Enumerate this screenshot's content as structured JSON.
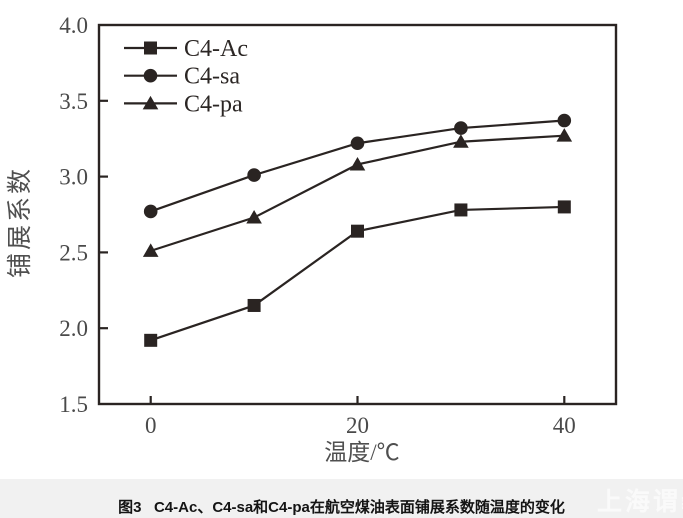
{
  "chart_data": {
    "type": "line",
    "x": [
      0,
      10,
      20,
      30,
      40
    ],
    "series": [
      {
        "name": "C4-Ac",
        "marker": "square",
        "values": [
          1.92,
          2.15,
          2.64,
          2.78,
          2.8
        ]
      },
      {
        "name": "C4-sa",
        "marker": "circle",
        "values": [
          2.77,
          3.01,
          3.22,
          3.32,
          3.37
        ]
      },
      {
        "name": "C4-pa",
        "marker": "triangle",
        "values": [
          2.51,
          2.73,
          3.08,
          3.23,
          3.27
        ]
      }
    ],
    "xlabel": "温度/℃",
    "ylabel": "铺展系数",
    "xlim": [
      -5,
      45
    ],
    "ylim": [
      1.5,
      4.0
    ],
    "xticks": {
      "values": [
        0,
        20,
        40
      ],
      "labels": [
        "0",
        "20",
        "40"
      ]
    },
    "yticks": {
      "values": [
        4.0,
        3.5,
        3.0,
        2.5,
        2.0,
        1.5
      ],
      "labels": [
        "4.0",
        "3.5",
        "3.0",
        "2.5",
        "2.0",
        "1.5"
      ]
    },
    "legend_position": "top-left",
    "grid": false,
    "line_color": "#2a2422"
  },
  "caption": {
    "text": "图3   C4-Ac、C4-sa和C4-pa在航空煤油表面铺展系数随温度的变化"
  },
  "watermark": {
    "text": "上海谓義"
  },
  "colors": {
    "background": "#ffffff",
    "caption_bar": "#f1f1f1",
    "axis_color": "#2a2422",
    "tick_label_color": "#4a4a4a",
    "caption_color": "#141414",
    "watermark_color": "#fafafa"
  }
}
